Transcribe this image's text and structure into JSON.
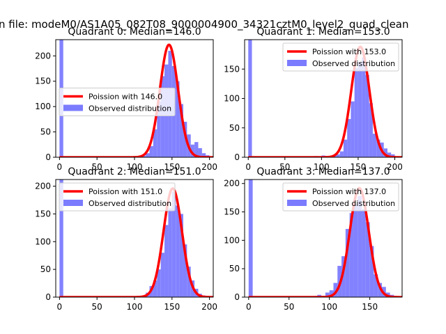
{
  "figure_title": "n file: modeM0/AS1A05_082T08_9000004900_34321cztM0_level2_quad_clean",
  "colors": {
    "curve": "#ff0000",
    "hist": "#7b7bff",
    "axes": "#000000"
  },
  "chart_data": [
    {
      "type": "histogram",
      "title": "Quadrant 0: Median=146.0",
      "xlim": [
        -5,
        205
      ],
      "ylim": [
        0,
        232
      ],
      "xticks": [
        0,
        50,
        100,
        150,
        200
      ],
      "yticks": [
        0,
        50,
        100,
        150,
        200
      ],
      "legend_position": "center-left",
      "legend": [
        "Poission with 146.0",
        "Observed distribution"
      ],
      "poisson_mean": 146.0,
      "curve_peak": 222,
      "bin_width": 5,
      "bins": [
        {
          "x": 0,
          "y": 232
        },
        {
          "x": 5,
          "y": 1
        },
        {
          "x": 95,
          "y": 1
        },
        {
          "x": 100,
          "y": 1
        },
        {
          "x": 105,
          "y": 2
        },
        {
          "x": 110,
          "y": 3
        },
        {
          "x": 115,
          "y": 8
        },
        {
          "x": 120,
          "y": 22
        },
        {
          "x": 125,
          "y": 55
        },
        {
          "x": 130,
          "y": 110
        },
        {
          "x": 135,
          "y": 160
        },
        {
          "x": 140,
          "y": 183
        },
        {
          "x": 145,
          "y": 210
        },
        {
          "x": 150,
          "y": 180
        },
        {
          "x": 155,
          "y": 150
        },
        {
          "x": 160,
          "y": 105
        },
        {
          "x": 165,
          "y": 70
        },
        {
          "x": 170,
          "y": 45
        },
        {
          "x": 175,
          "y": 25
        },
        {
          "x": 180,
          "y": 30
        },
        {
          "x": 185,
          "y": 18
        },
        {
          "x": 190,
          "y": 8
        },
        {
          "x": 195,
          "y": 4
        }
      ]
    },
    {
      "type": "histogram",
      "title": "Quadrant 1: Median=153.0",
      "xlim": [
        -5,
        210
      ],
      "ylim": [
        0,
        200
      ],
      "xticks": [
        0,
        50,
        100,
        150,
        200
      ],
      "yticks": [
        0,
        50,
        100,
        150
      ],
      "legend_position": "upper-right",
      "legend": [
        "Poission with 153.0",
        "Observed distribution"
      ],
      "poisson_mean": 153.0,
      "curve_peak": 188,
      "bin_width": 5,
      "bins": [
        {
          "x": 0,
          "y": 200
        },
        {
          "x": 80,
          "y": 1
        },
        {
          "x": 90,
          "y": 2
        },
        {
          "x": 95,
          "y": 1
        },
        {
          "x": 100,
          "y": 3
        },
        {
          "x": 105,
          "y": 2
        },
        {
          "x": 110,
          "y": 1
        },
        {
          "x": 115,
          "y": 4
        },
        {
          "x": 120,
          "y": 5
        },
        {
          "x": 125,
          "y": 10
        },
        {
          "x": 130,
          "y": 30
        },
        {
          "x": 135,
          "y": 65
        },
        {
          "x": 140,
          "y": 95
        },
        {
          "x": 145,
          "y": 152
        },
        {
          "x": 150,
          "y": 162
        },
        {
          "x": 155,
          "y": 170
        },
        {
          "x": 160,
          "y": 140
        },
        {
          "x": 165,
          "y": 92
        },
        {
          "x": 170,
          "y": 40
        },
        {
          "x": 175,
          "y": 30
        },
        {
          "x": 180,
          "y": 25
        },
        {
          "x": 185,
          "y": 15
        },
        {
          "x": 190,
          "y": 8
        },
        {
          "x": 195,
          "y": 5
        }
      ]
    },
    {
      "type": "histogram",
      "title": "Quadrant 2: Median=151.0",
      "xlim": [
        -5,
        205
      ],
      "ylim": [
        0,
        212
      ],
      "xticks": [
        0,
        50,
        100,
        150,
        200
      ],
      "yticks": [
        0,
        50,
        100,
        150,
        200
      ],
      "legend_position": "upper-left",
      "legend": [
        "Poission with 151.0",
        "Observed distribution"
      ],
      "poisson_mean": 151.0,
      "curve_peak": 196,
      "bin_width": 5,
      "bins": [
        {
          "x": 0,
          "y": 212
        },
        {
          "x": 80,
          "y": 1
        },
        {
          "x": 95,
          "y": 1
        },
        {
          "x": 100,
          "y": 2
        },
        {
          "x": 105,
          "y": 1
        },
        {
          "x": 110,
          "y": 3
        },
        {
          "x": 115,
          "y": 8
        },
        {
          "x": 120,
          "y": 20
        },
        {
          "x": 125,
          "y": 30
        },
        {
          "x": 130,
          "y": 50
        },
        {
          "x": 135,
          "y": 80
        },
        {
          "x": 140,
          "y": 130
        },
        {
          "x": 145,
          "y": 160
        },
        {
          "x": 150,
          "y": 190
        },
        {
          "x": 155,
          "y": 165
        },
        {
          "x": 160,
          "y": 150
        },
        {
          "x": 165,
          "y": 95
        },
        {
          "x": 170,
          "y": 55
        },
        {
          "x": 175,
          "y": 30
        },
        {
          "x": 180,
          "y": 15
        },
        {
          "x": 185,
          "y": 6
        },
        {
          "x": 190,
          "y": 3
        }
      ]
    },
    {
      "type": "histogram",
      "title": "Quadrant 3: Median=137.0",
      "xlim": [
        -5,
        190
      ],
      "ylim": [
        0,
        207
      ],
      "xticks": [
        0,
        50,
        100,
        150
      ],
      "yticks": [
        0,
        50,
        100,
        150,
        200
      ],
      "legend_position": "upper-right",
      "legend": [
        "Poission with 137.0",
        "Observed distribution"
      ],
      "poisson_mean": 137.0,
      "curve_peak": 192,
      "bin_width": 5,
      "bins": [
        {
          "x": 0,
          "y": 207
        },
        {
          "x": 75,
          "y": 1
        },
        {
          "x": 80,
          "y": 2
        },
        {
          "x": 85,
          "y": 4
        },
        {
          "x": 90,
          "y": 2
        },
        {
          "x": 95,
          "y": 8
        },
        {
          "x": 100,
          "y": 12
        },
        {
          "x": 105,
          "y": 25
        },
        {
          "x": 110,
          "y": 55
        },
        {
          "x": 115,
          "y": 72
        },
        {
          "x": 120,
          "y": 120
        },
        {
          "x": 125,
          "y": 148
        },
        {
          "x": 130,
          "y": 163
        },
        {
          "x": 135,
          "y": 178
        },
        {
          "x": 140,
          "y": 155
        },
        {
          "x": 145,
          "y": 132
        },
        {
          "x": 150,
          "y": 90
        },
        {
          "x": 155,
          "y": 40
        },
        {
          "x": 160,
          "y": 25
        },
        {
          "x": 165,
          "y": 18
        },
        {
          "x": 170,
          "y": 8
        },
        {
          "x": 175,
          "y": 4
        },
        {
          "x": 180,
          "y": 2
        }
      ]
    }
  ]
}
